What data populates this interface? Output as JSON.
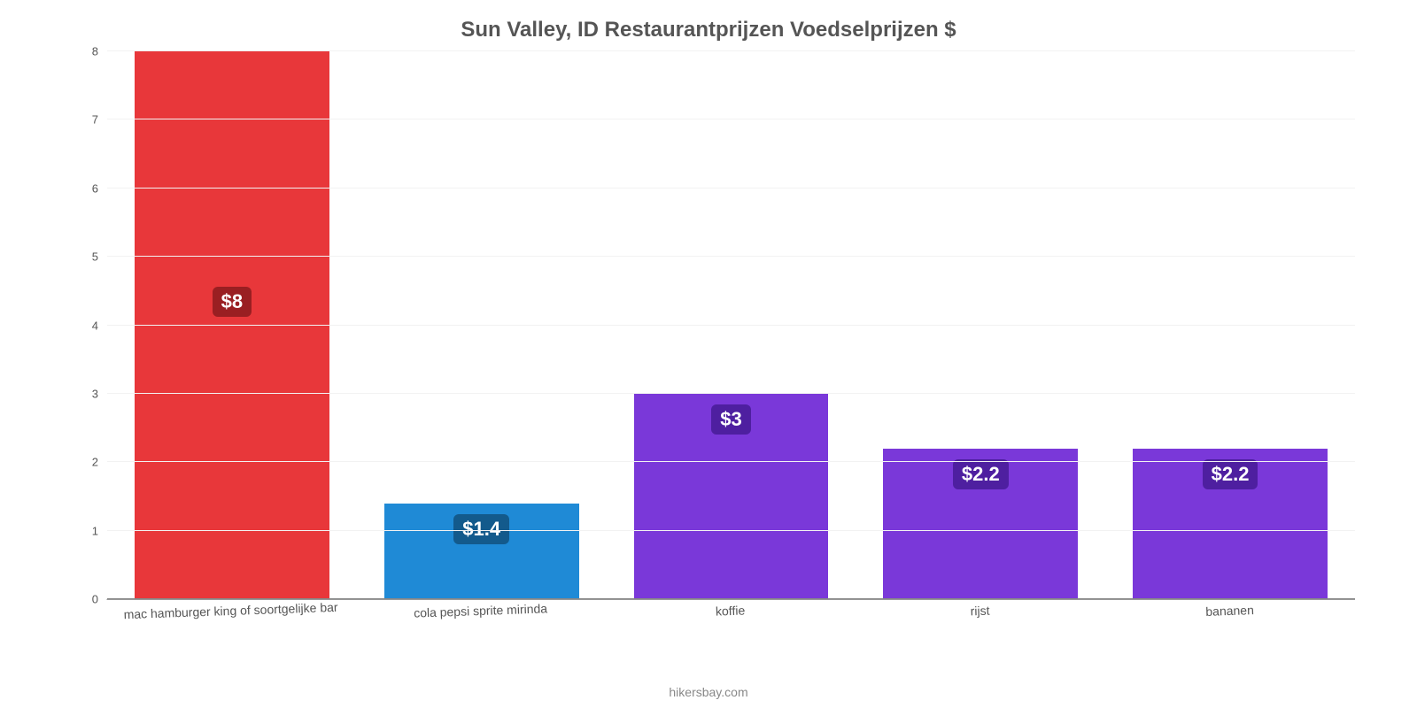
{
  "chart": {
    "type": "bar",
    "title": "Sun Valley, ID Restaurantprijzen Voedselprijzen $",
    "title_color": "#555555",
    "title_fontsize": 24,
    "background_color": "#ffffff",
    "grid_color": "#f2f2f2",
    "axis_line_color": "#888888",
    "ymax": 8,
    "yticks": [
      0,
      1,
      2,
      3,
      4,
      5,
      6,
      7,
      8
    ],
    "ytick_labels": [
      "0",
      "1",
      "2",
      "3",
      "4",
      "5",
      "6",
      "7",
      "8"
    ],
    "ytick_fontsize": 13,
    "ytick_color": "#555555",
    "xlabel_fontsize": 14,
    "xlabel_color": "#555555",
    "bar_width_ratio": 0.78,
    "value_badge_fontsize": 22,
    "categories": [
      "mac hamburger king of soortgelijke bar",
      "cola pepsi sprite mirinda",
      "koffie",
      "rijst",
      "bananen"
    ],
    "values": [
      8,
      1.4,
      3,
      2.2,
      2.2
    ],
    "value_labels": [
      "$8",
      "$1.4",
      "$3",
      "$2.2",
      "$2.2"
    ],
    "bar_colors": [
      "#e8373a",
      "#1f8ad6",
      "#7a38d9",
      "#7a38d9",
      "#7a38d9"
    ],
    "bar_colors_dark": [
      "#9a1f22",
      "#135a8c",
      "#4e1fa0",
      "#4e1fa0",
      "#4e1fa0"
    ]
  },
  "footer": {
    "credit": "hikersbay.com",
    "color": "#888888",
    "fontsize": 14
  }
}
